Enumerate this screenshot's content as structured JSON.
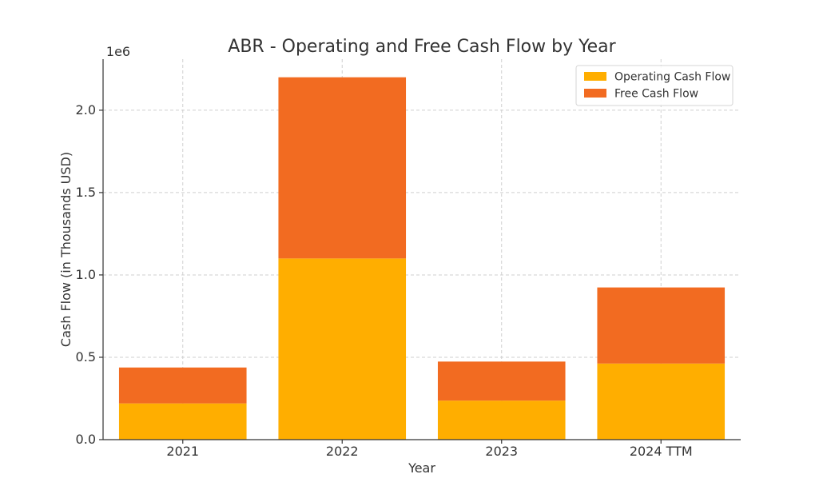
{
  "chart_data": {
    "type": "bar",
    "stacked": true,
    "title": "ABR - Operating and Free Cash Flow by Year",
    "xlabel": "Year",
    "ylabel": "Cash Flow (in Thousands USD)",
    "y_offset_label": "1e6",
    "categories": [
      "2021",
      "2022",
      "2023",
      "2024 TTM"
    ],
    "series": [
      {
        "name": "Operating Cash Flow",
        "color": "#FFAE00",
        "values": [
          220000,
          1100000,
          237000,
          462000
        ]
      },
      {
        "name": "Free Cash Flow",
        "color": "#F26B21",
        "values": [
          218000,
          1100000,
          237000,
          462000
        ]
      }
    ],
    "ylim": [
      0,
      2310000
    ],
    "yticks": [
      {
        "value": 0,
        "label": "0.0"
      },
      {
        "value": 500000,
        "label": "0.5"
      },
      {
        "value": 1000000,
        "label": "1.0"
      },
      {
        "value": 1500000,
        "label": "1.5"
      },
      {
        "value": 2000000,
        "label": "2.0"
      }
    ],
    "grid": true,
    "legend_position": "top-right"
  }
}
